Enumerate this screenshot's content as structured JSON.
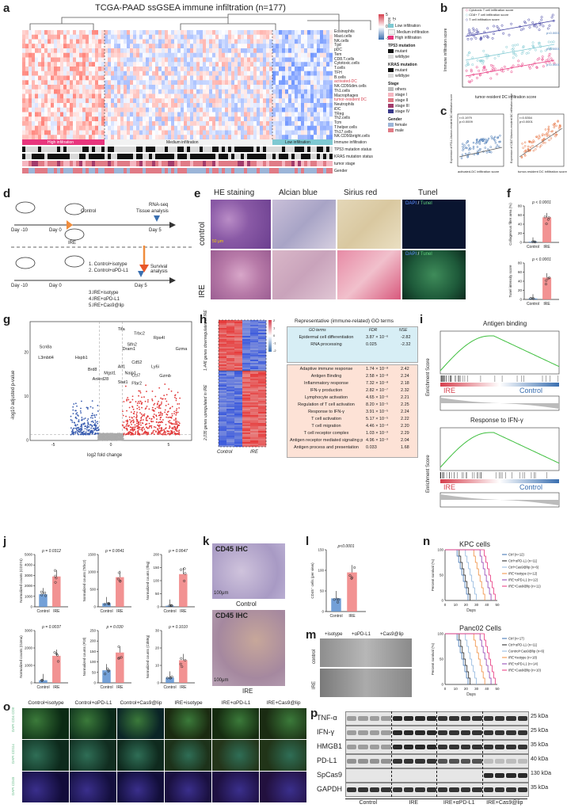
{
  "panel_letters": [
    "a",
    "b",
    "c",
    "d",
    "e",
    "f",
    "g",
    "h",
    "i",
    "j",
    "k",
    "l",
    "m",
    "n",
    "o",
    "p"
  ],
  "a": {
    "title": "TCGA-PAAD ssGSEA immune infiltration (n=177)",
    "row_labels": [
      "Eosinophils",
      "Mast.cells",
      "NK.cells",
      "Tgd",
      "pDC",
      "Tem",
      "CD8.T.cells",
      "Cytotoxic.cells",
      "T.cells",
      "TFH",
      "B.cells",
      "activated-DC",
      "NK.CD56dim.cells",
      "Th1.cells",
      "Macrophages",
      "tumor-resident DC",
      "Neutrophils",
      "iDC",
      "TReg",
      "Th2.cells",
      "Tcm",
      "T.helper.cells",
      "Th17.cells",
      "NK.CD56bright.cells"
    ],
    "track_labels": [
      "Immune infiltration",
      "TP53 mutation status",
      "KRAS mutation status",
      "tumor stage",
      "Gender"
    ],
    "group_labels": [
      "High infiltration",
      "Medium infiltration",
      "Low infiltration"
    ],
    "zscore_title": "Z-score",
    "zscore_ticks": [
      "5",
      "0",
      "-5"
    ],
    "legend": {
      "infiltration": [
        "Low infiltration",
        "Medium infiltration",
        "High infiltration"
      ],
      "tp53_title": "TP53 mutation",
      "tp53": [
        "mutant",
        "wildtype"
      ],
      "kras_title": "KRAS mutation",
      "kras": [
        "mutant",
        "wildtype"
      ],
      "stage_title": "Stage",
      "stage": [
        "others",
        "stage I",
        "stage II",
        "stage III",
        "stage IV"
      ],
      "gender_title": "Gender",
      "gender": [
        "female",
        "male"
      ]
    },
    "colors": {
      "high": "#e8357d",
      "medium": "#f2f2f2",
      "low": "#7ec9d2",
      "mutant": "#111111",
      "wildtype": "#d9d9d9",
      "red": "#d6404e",
      "blue": "#3a6fb0",
      "female": "#9cb5d8",
      "male": "#e07b86"
    }
  },
  "b": {
    "ylabel": "Immune infiltration score",
    "xlabel": "tumor-resident DC infiltration score",
    "legend": [
      "Cytotoxic T cell infiltration score",
      "CD8+ T cell infiltration score",
      "T cell infiltration score"
    ],
    "pvals": [
      "p<0.0001",
      "p<0.0001",
      "p<0.0001"
    ]
  },
  "c": {
    "left": {
      "ylabel": "Expression of PD-L1/tumor-resident DC infiltration score",
      "xlabel": "activated-DC infiltration score",
      "r": "r=0.1979",
      "p": "p=0.0009"
    },
    "right": {
      "ylabel": "Expression of CD274/tumor-resident DC infiltration score",
      "xlabel": "tumor-resident DC infiltration score",
      "r": "r=0.5354",
      "p": "p<0.0001"
    }
  },
  "d": {
    "day_minus10": "Day -10",
    "day0": "Day 0",
    "day5": "Day 5",
    "control": "Control",
    "ire": "IRE",
    "rnaseq": "RNA-seq",
    "tissue": "Tissue analysis",
    "survival": "Survival analysis",
    "groups": [
      "1. Control+isotype",
      "2. Control+αPD-L1",
      "3.IRE+isotype",
      "4.IRE+αPD-L1",
      "5.IRE+Cas9@lip"
    ]
  },
  "e": {
    "cols": [
      "HE staining",
      "Alcian blue",
      "Sirius red",
      "Tunel"
    ],
    "rows": [
      "control",
      "IRE"
    ],
    "dapi": "DAPI",
    "tunel": "Tunel",
    "scalebar": "50 μm"
  },
  "f": {
    "top": {
      "ylabel": "Collagenous fiber area (%)",
      "p": "p < 0.0001",
      "categories": [
        "Control",
        "IRE"
      ],
      "values": [
        1.5,
        55
      ],
      "ylim": [
        0,
        80
      ],
      "yticks": [
        "0",
        "20",
        "40",
        "60",
        "80"
      ]
    },
    "bottom": {
      "ylabel": "Tunel intensity score",
      "p": "p < 0.0001",
      "categories": [
        "Control",
        "IRE"
      ],
      "values": [
        2,
        48
      ],
      "ylim": [
        0,
        80
      ],
      "yticks": [
        "0",
        "20",
        "40",
        "60",
        "80"
      ]
    }
  },
  "g": {
    "ylabel": "-log10 adjusted p-value",
    "xlabel": "log2 fold change",
    "xticks": [
      "-5",
      "0",
      "5"
    ],
    "yticks": [
      "0",
      "10",
      "20"
    ],
    "genes": [
      "Tifa",
      "Trbc2",
      "Rps4l",
      "Slfn2",
      "Dram1",
      "Gzma",
      "Scn8a",
      "Hspb1",
      "Cd52",
      "L3mbtl4",
      "Aif1",
      "Ly6i",
      "Brd8",
      "Mgst1",
      "Naip1",
      "Ccl7",
      "Gzmb",
      "Ankrd28",
      "Stat1",
      "Ffar2"
    ]
  },
  "h": {
    "down_label": "1,446 genes downregulated in IRE",
    "up_label": "2,035 genes upregulated in IRE",
    "xlabels": [
      "Control",
      "IRE"
    ],
    "scale_ticks": [
      "2",
      "1",
      "0",
      "-1",
      "-2"
    ],
    "go_title": "Representative (immune-related) GO terms",
    "headers": [
      "GO terms",
      "FDR",
      "NSE"
    ],
    "down_terms": [
      {
        "term": "Epidermal cell differentiation",
        "fdr": "3.87 × 10⁻⁶",
        "nse": "-2.82"
      },
      {
        "term": "RNA processing",
        "fdr": "0.025",
        "nse": "-2.32"
      }
    ],
    "up_terms": [
      {
        "term": "Adaptive immune response",
        "fdr": "1.74 × 10⁻⁸",
        "nse": "2.42"
      },
      {
        "term": "Antigen Binding",
        "fdr": "2.58 × 10⁻⁸",
        "nse": "2.24"
      },
      {
        "term": "Inflammatory response",
        "fdr": "7.32 × 10⁻⁸",
        "nse": "2.18"
      },
      {
        "term": "IFN-γ production",
        "fdr": "2.82 × 10⁻⁷",
        "nse": "2.32"
      },
      {
        "term": "Lymphocyte activation",
        "fdr": "4.65 × 10⁻⁶",
        "nse": "2.21"
      },
      {
        "term": "Regulation of T cell activation",
        "fdr": "8.20 × 10⁻⁵",
        "nse": "2.25"
      },
      {
        "term": "Response to IFN-γ",
        "fdr": "3.91 × 10⁻⁵",
        "nse": "2.24"
      },
      {
        "term": "T cell activation",
        "fdr": "5.17 × 10⁻⁵",
        "nse": "2.22"
      },
      {
        "term": "T cell migration",
        "fdr": "4.46 × 10⁻⁴",
        "nse": "2.20"
      },
      {
        "term": "T cell receptor complex",
        "fdr": "1.03 × 10⁻³",
        "nse": "2.29"
      },
      {
        "term": "Antigen receptor mediated signaling pathways",
        "fdr": "4.96 × 10⁻³",
        "nse": "2.04"
      },
      {
        "term": "Antigen process and presentation",
        "fdr": "0.033",
        "nse": "1.68"
      }
    ]
  },
  "i": {
    "top_title": "Antigen binding",
    "bottom_title": "Response to IFN-γ",
    "ylabel": "Enrichment Score",
    "ire": "IRE",
    "control": "Control"
  },
  "j": {
    "categories": [
      "Control",
      "IRE"
    ],
    "panels": [
      {
        "ylabel": "Normalized counts (CD274)",
        "p": "p = 0.0312",
        "values": [
          1200,
          2900
        ],
        "ylim": [
          0,
          5000
        ],
        "yticks": [
          "0",
          "1000",
          "2000",
          "3000",
          "4000",
          "5000"
        ]
      },
      {
        "ylabel": "Normalized counts (Trbc2)",
        "p": "p = 0.0041",
        "values": [
          100,
          850
        ],
        "ylim": [
          0,
          1500
        ],
        "yticks": [
          "0",
          "500",
          "1000",
          "1500"
        ]
      },
      {
        "ylabel": "Normalized counts (Ifng)",
        "p": "p = 0.0047",
        "values": [
          4,
          125
        ],
        "ylim": [
          0,
          200
        ],
        "yticks": [
          "0",
          "50",
          "100",
          "150",
          "200"
        ]
      },
      {
        "ylabel": "Normalized counts (Gzma)",
        "p": "p = 0.0037",
        "values": [
          150,
          1550
        ],
        "ylim": [
          0,
          3000
        ],
        "yticks": [
          "0",
          "1000",
          "2000",
          "3000"
        ]
      },
      {
        "ylabel": "Normalized counts (Fl3l)",
        "p": "p = 0.030",
        "values": [
          60,
          145
        ],
        "ylim": [
          0,
          250
        ],
        "yticks": [
          "0",
          "50",
          "100",
          "150",
          "200",
          "250"
        ]
      },
      {
        "ylabel": "Normalized counts (Cd68g)",
        "p": "p = 0.1010",
        "values": [
          3,
          13
        ],
        "ylim": [
          0,
          30
        ],
        "yticks": [
          "0",
          "10",
          "20",
          "30"
        ]
      }
    ]
  },
  "k": {
    "title": "CD45 IHC",
    "scalebar": "100μm",
    "top_caption": "Control",
    "bottom_caption": "IRE"
  },
  "l": {
    "p": "p<0.0001",
    "ylabel": "CD45⁺ cells (per view)",
    "categories": [
      "Control",
      "IRE"
    ],
    "values": [
      32,
      95
    ],
    "ylim": [
      0,
      150
    ],
    "yticks": [
      "0",
      "50",
      "100",
      "150"
    ]
  },
  "m": {
    "cols": [
      "+isotype",
      "+αPD-L1",
      "+Cas9@lip"
    ],
    "rows": [
      "control",
      "IRE"
    ]
  },
  "n": {
    "top_title": "KPC cells",
    "bottom_title": "Panc02 Cells",
    "ylabel": "Percent survival (%)",
    "xlabel": "Days",
    "xticks": [
      "0",
      "10",
      "20",
      "30",
      "40",
      "50"
    ],
    "yticks": [
      "0",
      "50",
      "100"
    ],
    "top_legend": [
      "Ctrl (n=12)",
      "Ctrl+αPD-L1 (n=11)",
      "Ctrl+Cas9@lip (n=6)",
      "IRE+Isotype (n=12)",
      "IRE+αPD-L1 (n=12)",
      "IRE+Cas9@lip (n=11)"
    ],
    "bottom_legend": [
      "Ctrl (n=17)",
      "Ctrl+αPD-L1 (n=11)",
      "Control+Cas9@lip (n=6)",
      "IRE+isotype (n=18)",
      "IRE+αPD-L1 (n=14)",
      "IRE+Cas9@lip (n=10)"
    ],
    "colors": [
      "#3a6fb0",
      "#222222",
      "#8fb5dd",
      "#f08c3c",
      "#8e3fb0",
      "#e8357d"
    ]
  },
  "o": {
    "cols": [
      "Control+isotype",
      "Control+αPD-L1",
      "Control+Cas9@lip",
      "IRE+isotype",
      "IRE+αPD-L1",
      "IRE+Cas9@lip"
    ],
    "row_labels": [
      "DAPI CD4 CD8",
      "DAPI CD11c",
      "DAPI CD45"
    ]
  },
  "p": {
    "proteins": [
      "TNF-α",
      "IFN-γ",
      "HMGB1",
      "PD-L1",
      "SpCas9",
      "GAPDH"
    ],
    "kda": [
      "25 kDa",
      "25 kDa",
      "35 kDa",
      "40 kDa",
      "130 kDa",
      "35 kDa"
    ],
    "groups": [
      "Control",
      "IRE",
      "IRE+αPD-L1",
      "IRE+Cas9@lip"
    ]
  }
}
